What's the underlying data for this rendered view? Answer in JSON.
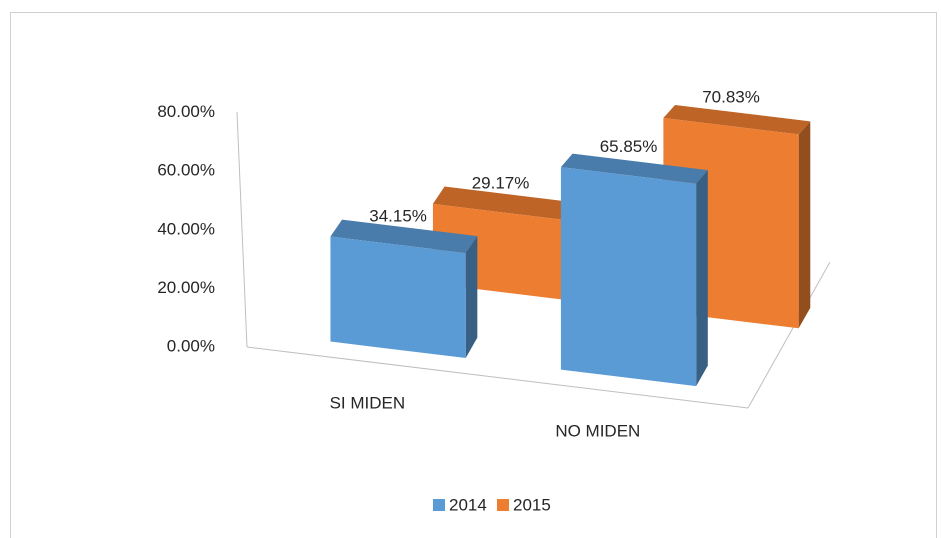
{
  "chart_data": {
    "type": "bar3d",
    "categories": [
      "SI MIDEN",
      "NO MIDEN"
    ],
    "series": [
      {
        "name": "2014",
        "color": "#5b9bd5",
        "values": [
          34.15,
          65.85
        ],
        "value_labels": [
          "34.15%",
          "65.85%"
        ]
      },
      {
        "name": "2015",
        "color": "#ed7d31",
        "values": [
          29.17,
          70.83
        ],
        "value_labels": [
          "29.17%",
          "70.83%"
        ]
      }
    ],
    "ylim": [
      0,
      80
    ],
    "yticks": [
      {
        "value": 0,
        "label": "0.00%"
      },
      {
        "value": 20,
        "label": "20.00%"
      },
      {
        "value": 40,
        "label": "40.00%"
      },
      {
        "value": 60,
        "label": "60.00%"
      },
      {
        "value": 80,
        "label": "80.00%"
      }
    ],
    "legend": "bottom"
  }
}
